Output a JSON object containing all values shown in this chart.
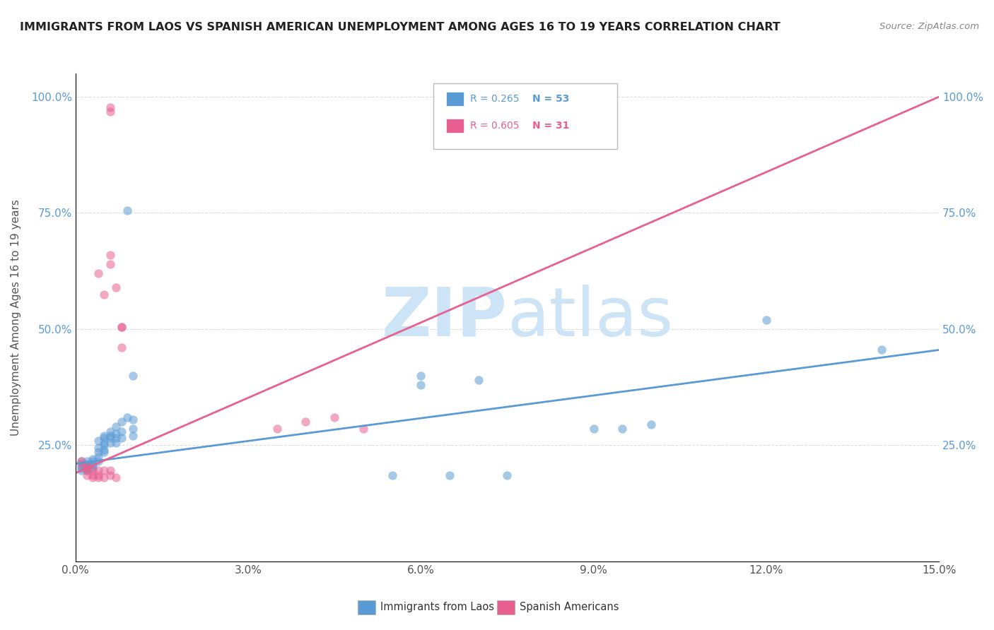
{
  "title": "IMMIGRANTS FROM LAOS VS SPANISH AMERICAN UNEMPLOYMENT AMONG AGES 16 TO 19 YEARS CORRELATION CHART",
  "source": "Source: ZipAtlas.com",
  "ylabel": "Unemployment Among Ages 16 to 19 years",
  "xlim": [
    0.0,
    0.15
  ],
  "ylim": [
    0.0,
    1.05
  ],
  "xtick_labels": [
    "0.0%",
    "3.0%",
    "6.0%",
    "9.0%",
    "12.0%",
    "15.0%"
  ],
  "xtick_values": [
    0.0,
    0.03,
    0.06,
    0.09,
    0.12,
    0.15
  ],
  "ytick_labels": [
    "25.0%",
    "50.0%",
    "75.0%",
    "100.0%"
  ],
  "ytick_values": [
    0.25,
    0.5,
    0.75,
    1.0
  ],
  "legend_entries": [
    {
      "label_r": "R = 0.265",
      "label_n": "N = 53",
      "color": "#5b9bd5"
    },
    {
      "label_r": "R = 0.605",
      "label_n": "N = 31",
      "color": "#e86090"
    }
  ],
  "legend_items_bottom": [
    {
      "label": "Immigrants from Laos",
      "color": "#5b9bd5"
    },
    {
      "label": "Spanish Americans",
      "color": "#e86090"
    }
  ],
  "blue_scatter": [
    [
      0.001,
      0.215
    ],
    [
      0.001,
      0.205
    ],
    [
      0.001,
      0.2
    ],
    [
      0.001,
      0.195
    ],
    [
      0.002,
      0.215
    ],
    [
      0.002,
      0.21
    ],
    [
      0.002,
      0.205
    ],
    [
      0.002,
      0.2
    ],
    [
      0.002,
      0.195
    ],
    [
      0.003,
      0.22
    ],
    [
      0.003,
      0.215
    ],
    [
      0.003,
      0.21
    ],
    [
      0.003,
      0.205
    ],
    [
      0.003,
      0.2
    ],
    [
      0.004,
      0.26
    ],
    [
      0.004,
      0.245
    ],
    [
      0.004,
      0.235
    ],
    [
      0.004,
      0.225
    ],
    [
      0.004,
      0.215
    ],
    [
      0.005,
      0.27
    ],
    [
      0.005,
      0.265
    ],
    [
      0.005,
      0.255
    ],
    [
      0.005,
      0.25
    ],
    [
      0.005,
      0.24
    ],
    [
      0.005,
      0.235
    ],
    [
      0.006,
      0.28
    ],
    [
      0.006,
      0.27
    ],
    [
      0.006,
      0.265
    ],
    [
      0.006,
      0.255
    ],
    [
      0.007,
      0.29
    ],
    [
      0.007,
      0.275
    ],
    [
      0.007,
      0.265
    ],
    [
      0.007,
      0.255
    ],
    [
      0.008,
      0.3
    ],
    [
      0.008,
      0.28
    ],
    [
      0.008,
      0.265
    ],
    [
      0.009,
      0.755
    ],
    [
      0.009,
      0.31
    ],
    [
      0.01,
      0.4
    ],
    [
      0.01,
      0.305
    ],
    [
      0.01,
      0.285
    ],
    [
      0.01,
      0.27
    ],
    [
      0.055,
      0.185
    ],
    [
      0.06,
      0.4
    ],
    [
      0.06,
      0.38
    ],
    [
      0.065,
      0.185
    ],
    [
      0.07,
      0.39
    ],
    [
      0.075,
      0.185
    ],
    [
      0.09,
      0.285
    ],
    [
      0.095,
      0.285
    ],
    [
      0.1,
      0.295
    ],
    [
      0.12,
      0.52
    ],
    [
      0.14,
      0.455
    ]
  ],
  "pink_scatter": [
    [
      0.001,
      0.215
    ],
    [
      0.001,
      0.21
    ],
    [
      0.002,
      0.205
    ],
    [
      0.002,
      0.2
    ],
    [
      0.002,
      0.195
    ],
    [
      0.002,
      0.185
    ],
    [
      0.003,
      0.195
    ],
    [
      0.003,
      0.185
    ],
    [
      0.003,
      0.18
    ],
    [
      0.004,
      0.62
    ],
    [
      0.004,
      0.195
    ],
    [
      0.004,
      0.185
    ],
    [
      0.004,
      0.18
    ],
    [
      0.005,
      0.575
    ],
    [
      0.005,
      0.195
    ],
    [
      0.005,
      0.18
    ],
    [
      0.006,
      0.66
    ],
    [
      0.006,
      0.64
    ],
    [
      0.006,
      0.195
    ],
    [
      0.006,
      0.185
    ],
    [
      0.006,
      0.968
    ],
    [
      0.006,
      0.978
    ],
    [
      0.007,
      0.59
    ],
    [
      0.007,
      0.18
    ],
    [
      0.008,
      0.46
    ],
    [
      0.008,
      0.505
    ],
    [
      0.008,
      0.505
    ],
    [
      0.035,
      0.285
    ],
    [
      0.04,
      0.3
    ],
    [
      0.045,
      0.31
    ],
    [
      0.05,
      0.285
    ]
  ],
  "blue_line_x": [
    0.0,
    0.15
  ],
  "blue_line_y": [
    0.21,
    0.455
  ],
  "pink_line_x": [
    0.0,
    0.15
  ],
  "pink_line_y": [
    0.19,
    1.0
  ],
  "blue_color": "#5b9bd5",
  "pink_color": "#e86090",
  "watermark_zip": "ZIP",
  "watermark_atlas": "atlas",
  "background_color": "#ffffff",
  "grid_color": "#dddddd"
}
